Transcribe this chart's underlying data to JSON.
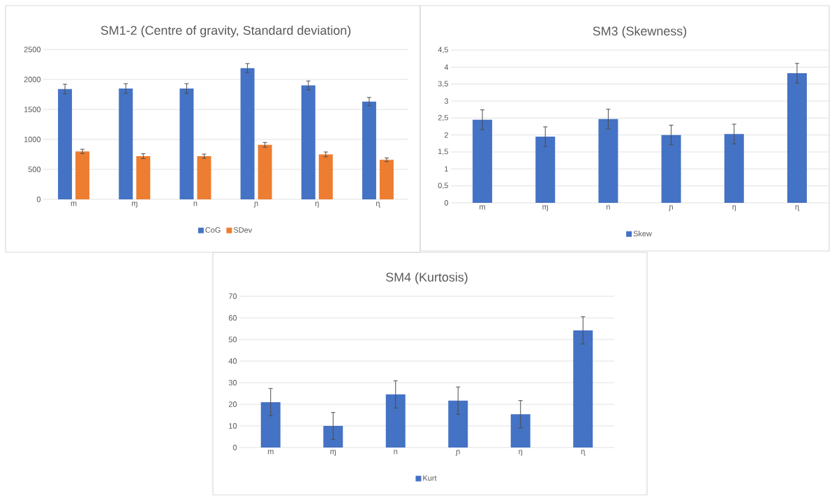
{
  "chart_data": [
    {
      "type": "bar",
      "title": "SM1-2 (Centre of gravity, Standard deviation)",
      "categories": [
        "m",
        "ɱ",
        "n",
        "ɲ",
        "ŋ",
        "ɳ"
      ],
      "series": [
        {
          "name": "CoG",
          "color": "#4472c4",
          "values": [
            1840,
            1850,
            1850,
            2190,
            1900,
            1630
          ],
          "errors": [
            80,
            80,
            80,
            75,
            75,
            70
          ]
        },
        {
          "name": "SDev",
          "color": "#ed7d31",
          "values": [
            800,
            720,
            720,
            910,
            750,
            660
          ],
          "errors": [
            35,
            40,
            35,
            40,
            40,
            30
          ]
        }
      ],
      "ylim": [
        0,
        2500
      ],
      "yticks": [
        0,
        500,
        1000,
        1500,
        2000,
        2500
      ],
      "grid": "y",
      "legend": "bottom"
    },
    {
      "type": "bar",
      "title": "SM3 (Skewness)",
      "categories": [
        "m",
        "ɱ",
        "n",
        "ɲ",
        "ŋ",
        "ɳ"
      ],
      "series": [
        {
          "name": "Skew",
          "color": "#4472c4",
          "values": [
            2.45,
            1.95,
            2.47,
            2.0,
            2.03,
            3.82
          ],
          "errors": [
            0.29,
            0.29,
            0.29,
            0.29,
            0.29,
            0.29
          ]
        }
      ],
      "ylim": [
        0,
        4.5
      ],
      "yticks": [
        0,
        {
          "value": 0.5,
          "label": "0,5"
        },
        1,
        {
          "value": 1.5,
          "label": "1,5"
        },
        2,
        {
          "value": 2.5,
          "label": "2,5"
        },
        3,
        {
          "value": 3.5,
          "label": "3,5"
        },
        4,
        {
          "value": 4.5,
          "label": "4,5"
        }
      ],
      "grid": "y",
      "legend": "bottom"
    },
    {
      "type": "bar",
      "title": "SM4 (Kurtosis)",
      "categories": [
        "m",
        "ɱ",
        "n",
        "ɲ",
        "ŋ",
        "ɳ"
      ],
      "series": [
        {
          "name": "Kurt",
          "color": "#4472c4",
          "values": [
            21,
            10,
            24.6,
            21.7,
            15.4,
            54.2
          ],
          "errors": [
            6.3,
            6.2,
            6.3,
            6.3,
            6.3,
            6.3
          ]
        }
      ],
      "ylim": [
        0,
        70
      ],
      "yticks": [
        0,
        10,
        20,
        30,
        40,
        50,
        60,
        70
      ],
      "grid": "y",
      "legend": "bottom"
    }
  ]
}
